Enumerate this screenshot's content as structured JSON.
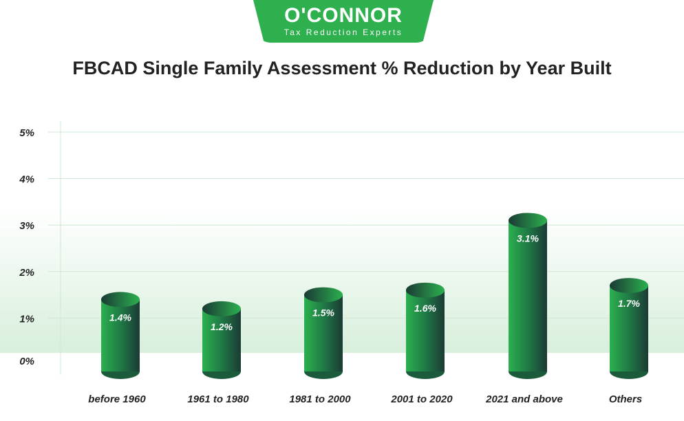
{
  "logo": {
    "name": "O'CONNOR",
    "tagline": "Tax Reduction Experts"
  },
  "chart_data": {
    "type": "bar",
    "title": "FBCAD Single Family Assessment % Reduction by Year Built",
    "categories": [
      "before 1960",
      "1961 to 1980",
      "1981 to 2000",
      "2001 to 2020",
      "2021 and above",
      "Others"
    ],
    "values": [
      1.4,
      1.2,
      1.5,
      1.6,
      3.1,
      1.7
    ],
    "data_labels": [
      "1.4%",
      "1.2%",
      "1.5%",
      "1.6%",
      "3.1%",
      "1.7%"
    ],
    "yticks": [
      "0%",
      "1%",
      "2%",
      "3%",
      "4%",
      "5%"
    ],
    "ylim": [
      0,
      5
    ],
    "grid": true,
    "colors": {
      "bar_light": "#2bb04f",
      "bar_dark": "#1b3a35",
      "grid": "#cfe8d4"
    }
  }
}
